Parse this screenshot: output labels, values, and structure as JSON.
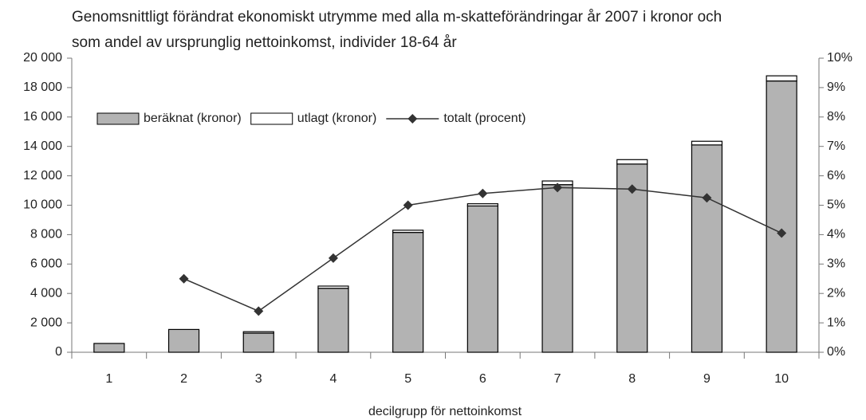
{
  "chart_data": {
    "type": "bar-line",
    "title": [
      "Genomsnittligt förändrat ekonomiskt utrymme med alla m-skatteförändringar år 2007 i kronor och",
      "som andel av ursprunglig nettoinkomst, individer 18-64 år"
    ],
    "x_label": "decilgrupp för nettoinkomst",
    "categories": [
      "1",
      "2",
      "3",
      "4",
      "5",
      "6",
      "7",
      "8",
      "9",
      "10"
    ],
    "series": [
      {
        "name": "beräknat (kronor)",
        "type": "bar",
        "color": "#b3b3b3",
        "values": [
          600,
          1550,
          1300,
          4350,
          8150,
          9950,
          11400,
          12800,
          14100,
          18450
        ]
      },
      {
        "name": "utlagt (kronor)",
        "type": "bar",
        "color": "#ffffff",
        "values": [
          0,
          0,
          100,
          150,
          150,
          150,
          250,
          300,
          250,
          350
        ]
      },
      {
        "name": "totalt (procent)",
        "type": "line",
        "axis": "y2",
        "color": "#333333",
        "values": [
          null,
          2.5,
          1.4,
          3.2,
          5.0,
          5.4,
          5.6,
          5.55,
          5.25,
          4.05
        ]
      }
    ],
    "ylim": [
      0,
      20000
    ],
    "yticks": [
      0,
      {
        "value": 2000,
        "label": "2 000"
      },
      {
        "value": 4000,
        "label": "4 000"
      },
      {
        "value": 6000,
        "label": "6 000"
      },
      {
        "value": 8000,
        "label": "8 000"
      },
      {
        "value": 10000,
        "label": "10 000"
      },
      {
        "value": 12000,
        "label": "12 000"
      },
      {
        "value": 14000,
        "label": "14 000"
      },
      {
        "value": 16000,
        "label": "16 000"
      },
      {
        "value": 18000,
        "label": "18 000"
      },
      {
        "value": 20000,
        "label": "20 000"
      }
    ],
    "y2lim": [
      0,
      10
    ],
    "y2ticks": [
      {
        "value": 0,
        "label": "0%"
      },
      {
        "value": 1,
        "label": "1%"
      },
      {
        "value": 2,
        "label": "2%"
      },
      {
        "value": 3,
        "label": "3%"
      },
      {
        "value": 4,
        "label": "4%"
      },
      {
        "value": 5,
        "label": "5%"
      },
      {
        "value": 6,
        "label": "6%"
      },
      {
        "value": 7,
        "label": "7%"
      },
      {
        "value": 8,
        "label": "8%"
      },
      {
        "value": 9,
        "label": "9%"
      },
      {
        "value": 10,
        "label": "10%"
      }
    ],
    "legend": "top-left"
  }
}
